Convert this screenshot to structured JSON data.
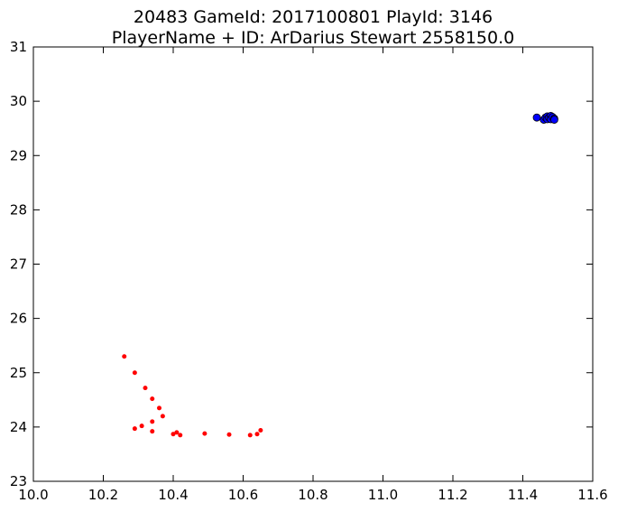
{
  "chart_data": {
    "type": "scatter",
    "title_line1": "20483 GameId: 2017100801 PlayId: 3146",
    "title_line2": "PlayerName + ID: ArDarius Stewart 2558150.0",
    "xlabel": "",
    "ylabel": "",
    "xlim": [
      10.0,
      11.6
    ],
    "ylim": [
      23,
      31
    ],
    "grid": false,
    "xticks": [
      10.0,
      10.2,
      10.4,
      10.6,
      10.8,
      11.0,
      11.2,
      11.4,
      11.6
    ],
    "xtick_labels": [
      "10.0",
      "10.2",
      "10.4",
      "10.6",
      "10.8",
      "11.0",
      "11.2",
      "11.4",
      "11.6"
    ],
    "yticks": [
      23,
      24,
      25,
      26,
      27,
      28,
      29,
      30,
      31
    ],
    "ytick_labels": [
      "23",
      "24",
      "25",
      "26",
      "27",
      "28",
      "29",
      "30",
      "31"
    ],
    "series": [
      {
        "color": "#ff0000",
        "marker": "small-dot",
        "points": [
          [
            10.26,
            25.3
          ],
          [
            10.29,
            25.0
          ],
          [
            10.32,
            24.72
          ],
          [
            10.34,
            24.52
          ],
          [
            10.36,
            24.35
          ],
          [
            10.37,
            24.2
          ],
          [
            10.34,
            24.1
          ],
          [
            10.31,
            24.02
          ],
          [
            10.29,
            23.97
          ],
          [
            10.34,
            23.92
          ],
          [
            10.4,
            23.87
          ],
          [
            10.41,
            23.9
          ],
          [
            10.42,
            23.85
          ],
          [
            10.49,
            23.88
          ],
          [
            10.56,
            23.86
          ],
          [
            10.62,
            23.85
          ],
          [
            10.64,
            23.87
          ],
          [
            10.65,
            23.94
          ]
        ]
      },
      {
        "color": "#0000ff",
        "marker": "large-dot",
        "points": [
          [
            11.44,
            29.7
          ],
          [
            11.46,
            29.66
          ],
          [
            11.465,
            29.7
          ],
          [
            11.47,
            29.72
          ],
          [
            11.47,
            29.67
          ],
          [
            11.475,
            29.7
          ],
          [
            11.48,
            29.73
          ],
          [
            11.48,
            29.67
          ],
          [
            11.485,
            29.71
          ],
          [
            11.49,
            29.68
          ],
          [
            11.49,
            29.66
          ]
        ]
      }
    ]
  }
}
